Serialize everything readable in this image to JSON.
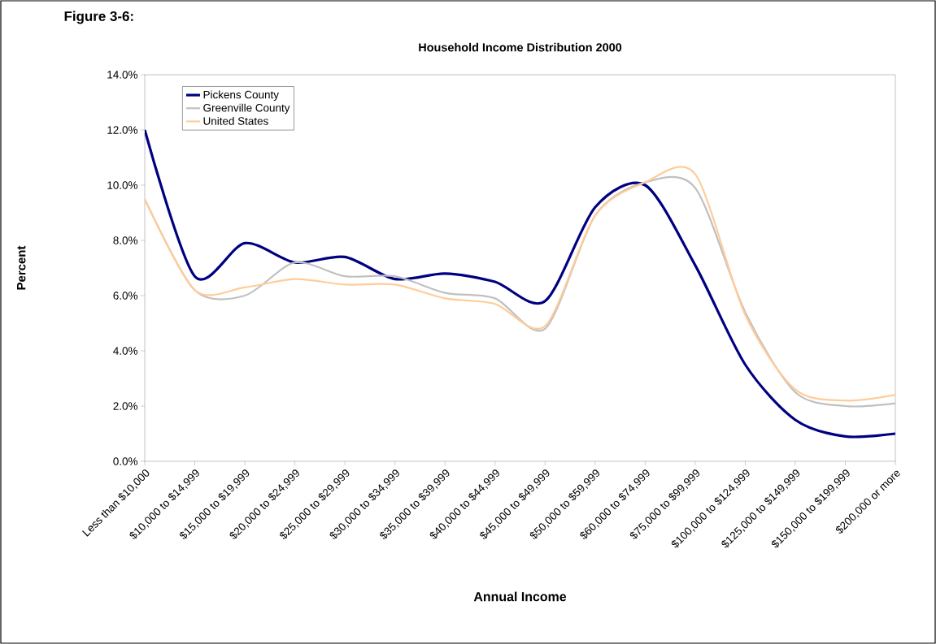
{
  "chart_data": {
    "type": "line",
    "title": "Household Income Distribution 2000",
    "annotations": [
      "Figure 3-6:"
    ],
    "xlabel": "Annual Income",
    "ylabel": "Percent",
    "categories": [
      "Less than $10,000",
      "$10,000 to $14,999",
      "$15,000 to $19,999",
      "$20,000 to $24,999",
      "$25,000 to $29,999",
      "$30,000 to $34,999",
      "$35,000 to $39,999",
      "$40,000 to $44,999",
      "$45,000 to $49,999",
      "$50,000 to $59,999",
      "$60,000 to $74,999",
      "$75,000 to $99,999",
      "$100,000 to $124,999",
      "$125,000 to $149,999",
      "$150,000 to $199,999",
      "$200,000 or more"
    ],
    "series": [
      {
        "name": "Pickens County",
        "color": "#000080",
        "values": [
          12.0,
          6.7,
          7.9,
          7.2,
          7.4,
          6.6,
          6.8,
          6.5,
          5.8,
          9.2,
          10.0,
          7.1,
          3.5,
          1.5,
          0.9,
          1.0
        ]
      },
      {
        "name": "Greenville County",
        "color": "#c0c0c0",
        "values": [
          9.5,
          6.2,
          6.0,
          7.2,
          6.7,
          6.7,
          6.1,
          5.9,
          4.8,
          8.9,
          10.1,
          9.9,
          5.4,
          2.5,
          2.0,
          2.1
        ]
      },
      {
        "name": "United States",
        "color": "#ffcc99",
        "values": [
          9.5,
          6.2,
          6.3,
          6.6,
          6.4,
          6.4,
          5.9,
          5.7,
          4.9,
          8.9,
          10.1,
          10.4,
          5.3,
          2.6,
          2.2,
          2.4
        ]
      }
    ],
    "ylim": [
      0,
      14
    ],
    "yticks": [
      {
        "value": 0,
        "label": "0.0%"
      },
      {
        "value": 2,
        "label": "2.0%"
      },
      {
        "value": 4,
        "label": "4.0%"
      },
      {
        "value": 6,
        "label": "6.0%"
      },
      {
        "value": 8,
        "label": "8.0%"
      },
      {
        "value": 10,
        "label": "10.0%"
      },
      {
        "value": 12,
        "label": "12.0%"
      },
      {
        "value": 14,
        "label": "14.0%"
      }
    ],
    "grid": false,
    "legend": "top left",
    "marker": "none",
    "line_style": "solid"
  }
}
